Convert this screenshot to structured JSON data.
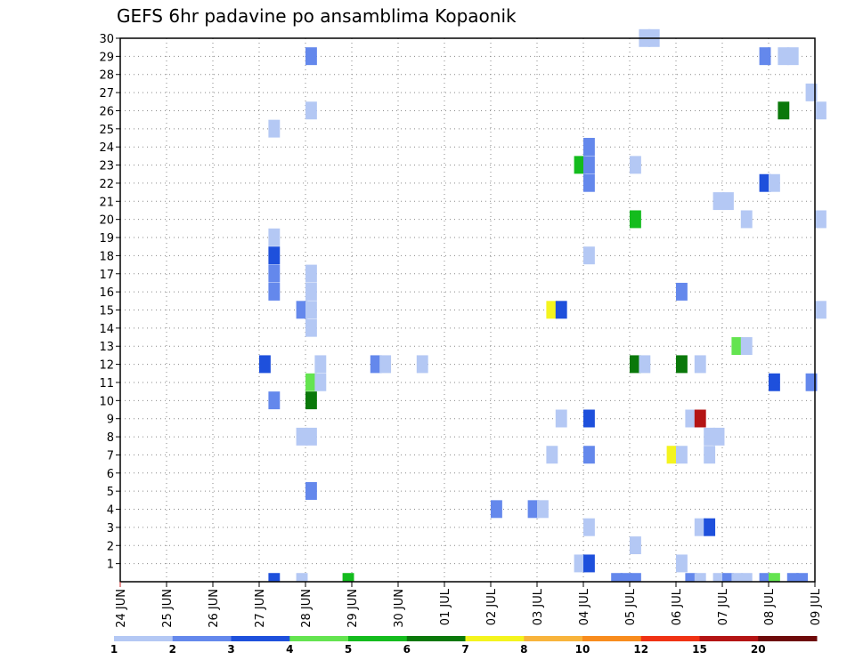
{
  "chart_data": {
    "type": "heatmap",
    "title": "GEFS 6hr padavine po ansamblima Kopaonik",
    "xlabel": "",
    "ylabel": "",
    "x_tick_labels": [
      "24 JUN",
      "25 JUN",
      "26 JUN",
      "27 JUN",
      "28 JUN",
      "29 JUN",
      "30 JUN",
      "01 JUL",
      "02 JUL",
      "03 JUL",
      "04 JUL",
      "05 JUL",
      "06 JUL",
      "07 JUL",
      "08 JUL",
      "09 JUL"
    ],
    "x_range_days": [
      0,
      15
    ],
    "y_range": [
      0,
      30
    ],
    "y_ticks": [
      1,
      2,
      3,
      4,
      5,
      6,
      7,
      8,
      9,
      10,
      11,
      12,
      13,
      14,
      15,
      16,
      17,
      18,
      19,
      20,
      21,
      22,
      23,
      24,
      25,
      26,
      27,
      28,
      29,
      30
    ],
    "grid": true,
    "colorbar": {
      "position": "bottom",
      "labels": [
        "1",
        "2",
        "3",
        "4",
        "5",
        "6",
        "7",
        "8",
        "10",
        "12",
        "15",
        "20"
      ],
      "colors": [
        "#b4c8f4",
        "#6488ec",
        "#1e50dc",
        "#64e450",
        "#14bc1e",
        "#0a780a",
        "#f4f41e",
        "#f8b43c",
        "#f88c1e",
        "#f03214",
        "#b41414",
        "#6e0a0a"
      ]
    },
    "cells": [
      {
        "d": 11.2,
        "m": 30,
        "c": 1
      },
      {
        "d": 11.4,
        "m": 30,
        "c": 1
      },
      {
        "d": 4.0,
        "m": 29,
        "c": 2
      },
      {
        "d": 13.8,
        "m": 29,
        "c": 2
      },
      {
        "d": 14.2,
        "m": 29,
        "c": 1
      },
      {
        "d": 14.4,
        "m": 29,
        "c": 1
      },
      {
        "d": 14.8,
        "m": 27,
        "c": 1
      },
      {
        "d": 4.0,
        "m": 26,
        "c": 1
      },
      {
        "d": 14.2,
        "m": 26,
        "c": 6
      },
      {
        "d": 15.0,
        "m": 26,
        "c": 1
      },
      {
        "d": 3.2,
        "m": 25,
        "c": 1
      },
      {
        "d": 10.0,
        "m": 24,
        "c": 2
      },
      {
        "d": 9.8,
        "m": 23,
        "c": 5
      },
      {
        "d": 10.0,
        "m": 23,
        "c": 2
      },
      {
        "d": 11.0,
        "m": 23,
        "c": 1
      },
      {
        "d": 10.0,
        "m": 22,
        "c": 2
      },
      {
        "d": 13.8,
        "m": 22,
        "c": 3
      },
      {
        "d": 14.0,
        "m": 22,
        "c": 1
      },
      {
        "d": 12.8,
        "m": 21,
        "c": 1
      },
      {
        "d": 13.0,
        "m": 21,
        "c": 1
      },
      {
        "d": 11.0,
        "m": 20,
        "c": 5
      },
      {
        "d": 13.4,
        "m": 20,
        "c": 1
      },
      {
        "d": 15.0,
        "m": 20,
        "c": 1
      },
      {
        "d": 3.2,
        "m": 19,
        "c": 1
      },
      {
        "d": 3.2,
        "m": 18,
        "c": 3
      },
      {
        "d": 10.0,
        "m": 18,
        "c": 1
      },
      {
        "d": 3.2,
        "m": 17,
        "c": 2
      },
      {
        "d": 4.0,
        "m": 17,
        "c": 1
      },
      {
        "d": 3.2,
        "m": 16,
        "c": 2
      },
      {
        "d": 4.0,
        "m": 16,
        "c": 1
      },
      {
        "d": 12.0,
        "m": 16,
        "c": 2
      },
      {
        "d": 3.8,
        "m": 15,
        "c": 2
      },
      {
        "d": 4.0,
        "m": 15,
        "c": 1
      },
      {
        "d": 9.2,
        "m": 15,
        "c": 7
      },
      {
        "d": 9.4,
        "m": 15,
        "c": 3
      },
      {
        "d": 15.0,
        "m": 15,
        "c": 1
      },
      {
        "d": 4.0,
        "m": 14,
        "c": 1
      },
      {
        "d": 13.2,
        "m": 13,
        "c": 4
      },
      {
        "d": 13.4,
        "m": 13,
        "c": 1
      },
      {
        "d": 3.0,
        "m": 12,
        "c": 3
      },
      {
        "d": 4.2,
        "m": 12,
        "c": 1
      },
      {
        "d": 5.4,
        "m": 12,
        "c": 2
      },
      {
        "d": 5.6,
        "m": 12,
        "c": 1
      },
      {
        "d": 6.4,
        "m": 12,
        "c": 1
      },
      {
        "d": 11.0,
        "m": 12,
        "c": 6
      },
      {
        "d": 11.2,
        "m": 12,
        "c": 1
      },
      {
        "d": 12.0,
        "m": 12,
        "c": 6
      },
      {
        "d": 12.4,
        "m": 12,
        "c": 1
      },
      {
        "d": 4.0,
        "m": 11,
        "c": 4
      },
      {
        "d": 4.2,
        "m": 11,
        "c": 1
      },
      {
        "d": 14.0,
        "m": 11,
        "c": 3
      },
      {
        "d": 14.8,
        "m": 11,
        "c": 2
      },
      {
        "d": 3.2,
        "m": 10,
        "c": 2
      },
      {
        "d": 4.0,
        "m": 10,
        "c": 6
      },
      {
        "d": 9.4,
        "m": 9,
        "c": 1
      },
      {
        "d": 10.0,
        "m": 9,
        "c": 3
      },
      {
        "d": 12.2,
        "m": 9,
        "c": 1
      },
      {
        "d": 12.4,
        "m": 9,
        "c": 11
      },
      {
        "d": 3.8,
        "m": 8,
        "c": 1
      },
      {
        "d": 4.0,
        "m": 8,
        "c": 1
      },
      {
        "d": 12.6,
        "m": 8,
        "c": 1
      },
      {
        "d": 12.8,
        "m": 8,
        "c": 1
      },
      {
        "d": 9.2,
        "m": 7,
        "c": 1
      },
      {
        "d": 10.0,
        "m": 7,
        "c": 2
      },
      {
        "d": 11.8,
        "m": 7,
        "c": 7
      },
      {
        "d": 12.0,
        "m": 7,
        "c": 1
      },
      {
        "d": 12.6,
        "m": 7,
        "c": 1
      },
      {
        "d": 4.0,
        "m": 5,
        "c": 2
      },
      {
        "d": 8.0,
        "m": 4,
        "c": 2
      },
      {
        "d": 8.8,
        "m": 4,
        "c": 2
      },
      {
        "d": 9.0,
        "m": 4,
        "c": 1
      },
      {
        "d": 10.0,
        "m": 3,
        "c": 1
      },
      {
        "d": 12.4,
        "m": 3,
        "c": 1
      },
      {
        "d": 12.6,
        "m": 3,
        "c": 3
      },
      {
        "d": 11.0,
        "m": 2,
        "c": 1
      },
      {
        "d": 9.8,
        "m": 1,
        "c": 1
      },
      {
        "d": 10.0,
        "m": 1,
        "c": 3
      },
      {
        "d": 12.0,
        "m": 1,
        "c": 1
      },
      {
        "d": 3.2,
        "m": 0,
        "c": 3
      },
      {
        "d": 3.8,
        "m": 0,
        "c": 1
      },
      {
        "d": 4.8,
        "m": 0,
        "c": 5
      },
      {
        "d": 10.6,
        "m": 0,
        "c": 2
      },
      {
        "d": 10.8,
        "m": 0,
        "c": 2
      },
      {
        "d": 11.0,
        "m": 0,
        "c": 2
      },
      {
        "d": 12.2,
        "m": 0,
        "c": 2
      },
      {
        "d": 12.4,
        "m": 0,
        "c": 1
      },
      {
        "d": 12.8,
        "m": 0,
        "c": 1
      },
      {
        "d": 13.0,
        "m": 0,
        "c": 2
      },
      {
        "d": 13.2,
        "m": 0,
        "c": 1
      },
      {
        "d": 13.4,
        "m": 0,
        "c": 1
      },
      {
        "d": 13.8,
        "m": 0,
        "c": 2
      },
      {
        "d": 14.0,
        "m": 0,
        "c": 4
      },
      {
        "d": 14.4,
        "m": 0,
        "c": 2
      },
      {
        "d": 14.6,
        "m": 0,
        "c": 2
      }
    ]
  }
}
